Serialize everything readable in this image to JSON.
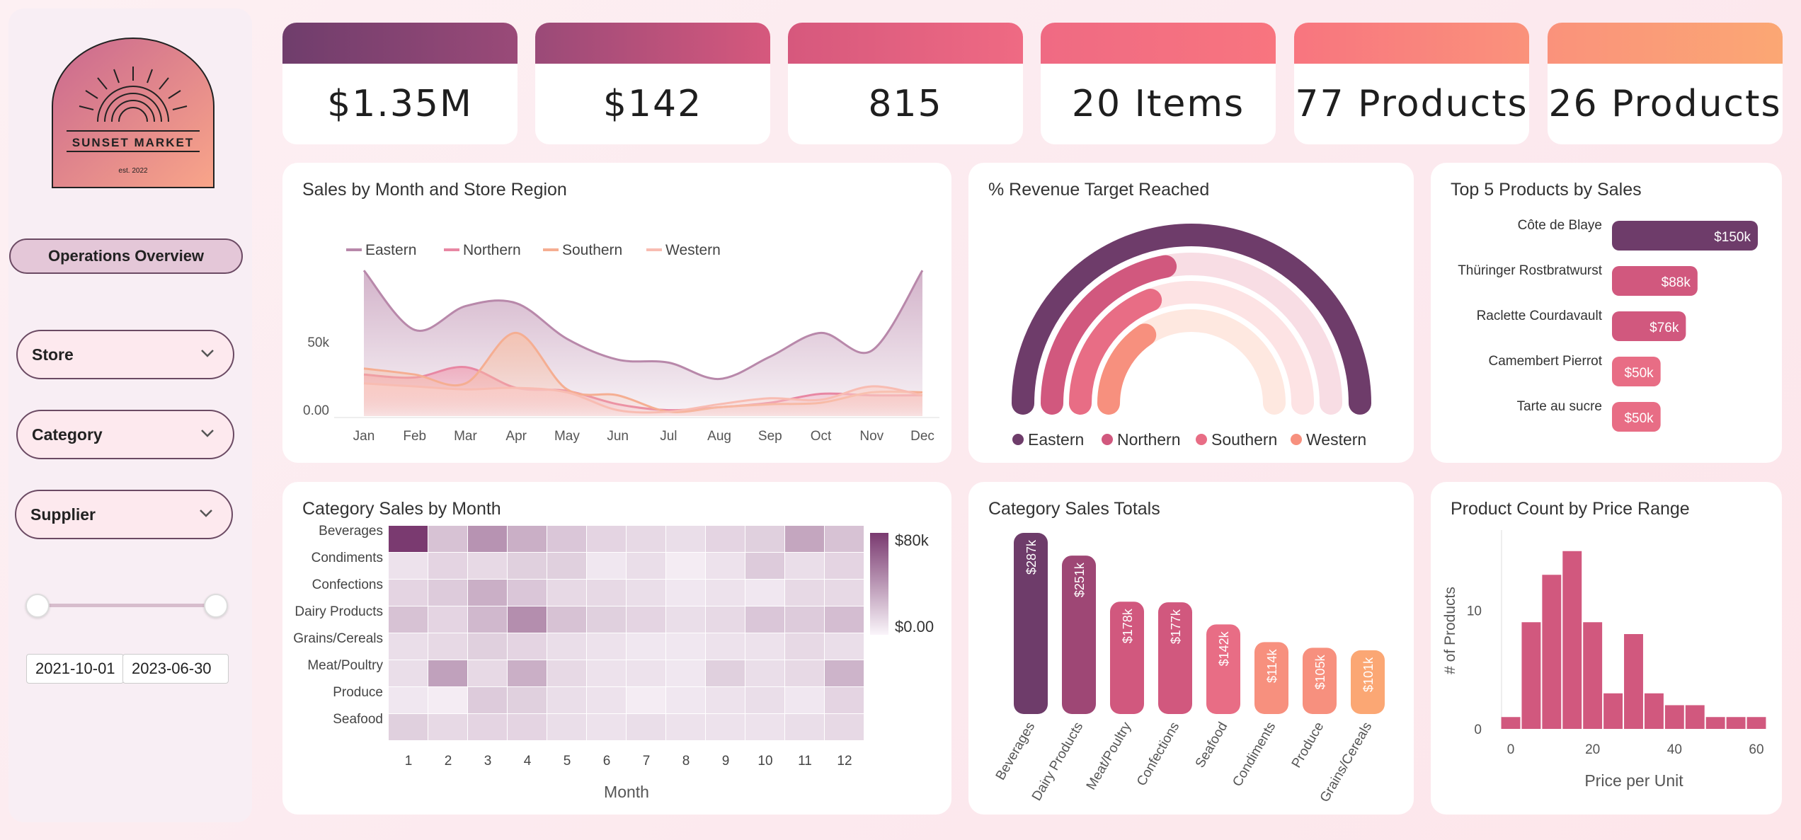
{
  "sidebar": {
    "logo": {
      "name": "SUNSET MARKET",
      "est": "est. 2022"
    },
    "ops_button": "Operations Overview",
    "filters": {
      "store": "Store",
      "category": "Category",
      "supplier": "Supplier"
    },
    "date_range": {
      "start": "2021-10-01",
      "end": "2023-06-30"
    }
  },
  "kpis": [
    "$1.35M",
    "$142",
    "815",
    "20 Items",
    "77 Products",
    "26 Products"
  ],
  "colors": {
    "purple": "#6e3c6a",
    "plum": "#9e4775",
    "rose": "#d1587e",
    "pink": "#e86d85",
    "salmon": "#f7907e",
    "peach": "#fba774"
  },
  "chart_data": [
    {
      "type": "area",
      "title": "Sales by Month and Store Region",
      "categories": [
        "Jan",
        "Feb",
        "Mar",
        "Apr",
        "May",
        "Jun",
        "Jul",
        "Aug",
        "Sep",
        "Oct",
        "Nov",
        "Dec"
      ],
      "series": [
        {
          "name": "Eastern",
          "values": [
            98000,
            58000,
            74000,
            76000,
            52000,
            38000,
            36000,
            25000,
            40000,
            56000,
            44000,
            98000
          ]
        },
        {
          "name": "Northern",
          "values": [
            28000,
            26000,
            33000,
            19000,
            17000,
            8000,
            4000,
            6000,
            9000,
            15000,
            14000,
            14000
          ]
        },
        {
          "name": "Southern",
          "values": [
            32000,
            28000,
            22000,
            56000,
            18000,
            14000,
            3000,
            6000,
            8000,
            9000,
            16000,
            16000
          ]
        },
        {
          "name": "Western",
          "values": [
            22000,
            20000,
            18000,
            19000,
            16000,
            4000,
            3000,
            8000,
            12000,
            11000,
            20000,
            14000
          ]
        }
      ],
      "yticks": [
        "0.00",
        "50k"
      ],
      "ylim": [
        0,
        100000
      ],
      "legend": "top"
    },
    {
      "type": "gauge",
      "title": "% Revenue Target Reached",
      "series": [
        {
          "name": "Eastern",
          "value": 1.0
        },
        {
          "name": "Northern",
          "value": 0.44
        },
        {
          "name": "Southern",
          "value": 0.38
        },
        {
          "name": "Western",
          "value": 0.31
        }
      ],
      "legend": "bottom"
    },
    {
      "type": "bar",
      "title": "Top 5 Products by Sales",
      "orientation": "horizontal",
      "categories": [
        "Côte de Blaye",
        "Thüringer Rostbratwurst",
        "Raclette Courdavault",
        "Camembert Pierrot",
        "Tarte au sucre"
      ],
      "values": [
        150000,
        88000,
        76000,
        50000,
        50000
      ],
      "labels": [
        "$150k",
        "$88k",
        "$76k",
        "$50k",
        "$50k"
      ]
    },
    {
      "type": "heatmap",
      "title": "Category Sales by Month",
      "xlabel": "Month",
      "x": [
        "1",
        "2",
        "3",
        "4",
        "5",
        "6",
        "7",
        "8",
        "9",
        "10",
        "11",
        "12"
      ],
      "y": [
        "Beverages",
        "Condiments",
        "Confections",
        "Dairy Products",
        "Grains/Cereals",
        "Meat/Poultry",
        "Produce",
        "Seafood"
      ],
      "values": [
        [
          80000,
          22000,
          42000,
          30000,
          20000,
          14000,
          12000,
          10000,
          14000,
          16000,
          34000,
          22000
        ],
        [
          8000,
          14000,
          12000,
          16000,
          16000,
          6000,
          10000,
          4000,
          8000,
          18000,
          10000,
          14000
        ],
        [
          14000,
          18000,
          30000,
          20000,
          12000,
          12000,
          10000,
          6000,
          8000,
          6000,
          12000,
          12000
        ],
        [
          22000,
          14000,
          26000,
          44000,
          22000,
          16000,
          14000,
          10000,
          12000,
          20000,
          18000,
          24000
        ],
        [
          10000,
          12000,
          16000,
          14000,
          10000,
          8000,
          6000,
          6000,
          8000,
          8000,
          12000,
          10000
        ],
        [
          10000,
          36000,
          12000,
          30000,
          12000,
          8000,
          8000,
          6000,
          16000,
          10000,
          12000,
          28000
        ],
        [
          6000,
          4000,
          18000,
          16000,
          10000,
          8000,
          4000,
          6000,
          8000,
          10000,
          6000,
          14000
        ],
        [
          16000,
          12000,
          14000,
          14000,
          10000,
          8000,
          10000,
          8000,
          8000,
          8000,
          10000,
          12000
        ]
      ],
      "colorbar": {
        "max_label": "$80k",
        "min_label": "$0.00",
        "range": [
          0,
          80000
        ]
      }
    },
    {
      "type": "bar",
      "title": "Category Sales Totals",
      "categories": [
        "Beverages",
        "Dairy Products",
        "Meat/Poultry",
        "Confections",
        "Seafood",
        "Condiments",
        "Produce",
        "Grains/Cereals"
      ],
      "values": [
        287000,
        251000,
        178000,
        177000,
        142000,
        114000,
        105000,
        101000
      ],
      "labels": [
        "$287k",
        "$251k",
        "$178k",
        "$177k",
        "$142k",
        "$114k",
        "$105k",
        "$101k"
      ]
    },
    {
      "type": "bar",
      "title": "Product Count by Price Range",
      "xlabel": "Price per Unit",
      "ylabel": "# of Products",
      "bin_start": 0,
      "bin_width": 5,
      "values": [
        1,
        9,
        13,
        15,
        9,
        3,
        8,
        3,
        2,
        2,
        1,
        1,
        1
      ],
      "xticks": [
        "0",
        "20",
        "40",
        "60"
      ],
      "yticks": [
        "0",
        "10"
      ],
      "xlim": [
        0,
        60
      ],
      "ylim": [
        0,
        16
      ]
    }
  ]
}
